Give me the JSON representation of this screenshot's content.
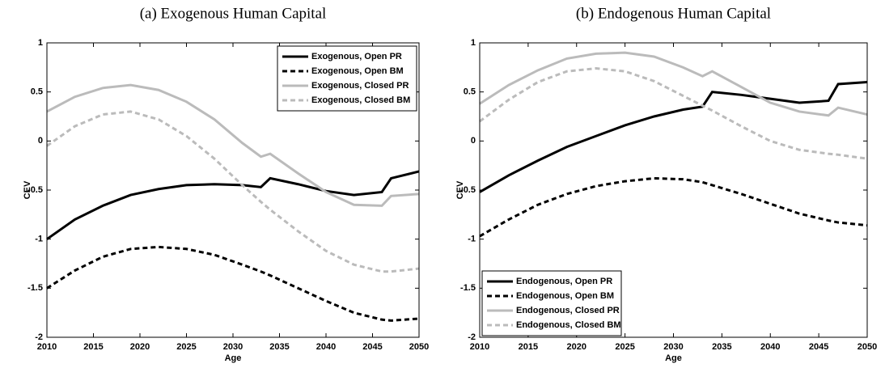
{
  "chart_data": [
    {
      "type": "line",
      "title": "(a) Exogenous Human Capital",
      "xlabel": "Age",
      "ylabel": "CEV",
      "x": [
        2010,
        2013,
        2016,
        2019,
        2022,
        2025,
        2028,
        2031,
        2033,
        2034,
        2037,
        2040,
        2043,
        2046,
        2047,
        2050
      ],
      "series": [
        {
          "name": "Exogenous, Open PR",
          "color": "#000000",
          "dashed": false,
          "values": [
            -1,
            -0.8,
            -0.66,
            -0.55,
            -0.49,
            -0.45,
            -0.44,
            -0.45,
            -0.47,
            -0.38,
            -0.44,
            -0.51,
            -0.55,
            -0.52,
            -0.38,
            -0.31
          ]
        },
        {
          "name": "Exogenous, Open BM",
          "color": "#000000",
          "dashed": true,
          "values": [
            -1.5,
            -1.32,
            -1.18,
            -1.1,
            -1.08,
            -1.1,
            -1.16,
            -1.26,
            -1.33,
            -1.37,
            -1.5,
            -1.63,
            -1.75,
            -1.82,
            -1.83,
            -1.81
          ]
        },
        {
          "name": "Exogenous, Closed PR",
          "color": "#bbbbbb",
          "dashed": false,
          "values": [
            0.3,
            0.45,
            0.54,
            0.57,
            0.52,
            0.4,
            0.22,
            -0.02,
            -0.16,
            -0.13,
            -0.33,
            -0.52,
            -0.65,
            -0.66,
            -0.56,
            -0.54
          ]
        },
        {
          "name": "Exogenous, Closed BM",
          "color": "#bbbbbb",
          "dashed": true,
          "values": [
            -0.05,
            0.15,
            0.27,
            0.3,
            0.22,
            0.05,
            -0.18,
            -0.45,
            -0.62,
            -0.7,
            -0.92,
            -1.12,
            -1.26,
            -1.33,
            -1.33,
            -1.3
          ]
        }
      ],
      "xlim": [
        2010,
        2050
      ],
      "xticks": [
        2010,
        2015,
        2020,
        2025,
        2030,
        2035,
        2040,
        2045,
        2050
      ],
      "ylim": [
        -2,
        1
      ],
      "yticks": [
        -2,
        -1.5,
        -1,
        -0.5,
        0,
        0.5,
        1
      ],
      "legend": "upper-right"
    },
    {
      "type": "line",
      "title": "(b) Endogenous Human Capital",
      "xlabel": "Age",
      "ylabel": "CEV",
      "x": [
        2010,
        2013,
        2016,
        2019,
        2022,
        2025,
        2028,
        2031,
        2033,
        2034,
        2037,
        2040,
        2043,
        2046,
        2047,
        2050
      ],
      "series": [
        {
          "name": "Endogenous, Open PR",
          "color": "#000000",
          "dashed": false,
          "values": [
            -0.52,
            -0.35,
            -0.2,
            -0.06,
            0.05,
            0.16,
            0.25,
            0.32,
            0.35,
            0.5,
            0.47,
            0.43,
            0.39,
            0.41,
            0.58,
            0.6
          ]
        },
        {
          "name": "Endogenous, Open BM",
          "color": "#000000",
          "dashed": true,
          "values": [
            -0.97,
            -0.8,
            -0.65,
            -0.54,
            -0.46,
            -0.41,
            -0.38,
            -0.39,
            -0.42,
            -0.45,
            -0.54,
            -0.64,
            -0.74,
            -0.81,
            -0.83,
            -0.86
          ]
        },
        {
          "name": "Endogenous, Closed PR",
          "color": "#bbbbbb",
          "dashed": false,
          "values": [
            0.38,
            0.57,
            0.72,
            0.84,
            0.89,
            0.9,
            0.86,
            0.75,
            0.66,
            0.71,
            0.55,
            0.39,
            0.3,
            0.26,
            0.34,
            0.27
          ]
        },
        {
          "name": "Endogenous, Closed BM",
          "color": "#bbbbbb",
          "dashed": true,
          "values": [
            0.2,
            0.42,
            0.6,
            0.71,
            0.74,
            0.71,
            0.61,
            0.46,
            0.36,
            0.31,
            0.15,
            0,
            -0.09,
            -0.13,
            -0.14,
            -0.18
          ]
        }
      ],
      "xlim": [
        2010,
        2050
      ],
      "xticks": [
        2010,
        2015,
        2020,
        2025,
        2030,
        2035,
        2040,
        2045,
        2050
      ],
      "ylim": [
        -2,
        1
      ],
      "yticks": [
        -2,
        -1.5,
        -1,
        -0.5,
        0,
        0.5,
        1
      ],
      "legend": "lower-left"
    }
  ]
}
